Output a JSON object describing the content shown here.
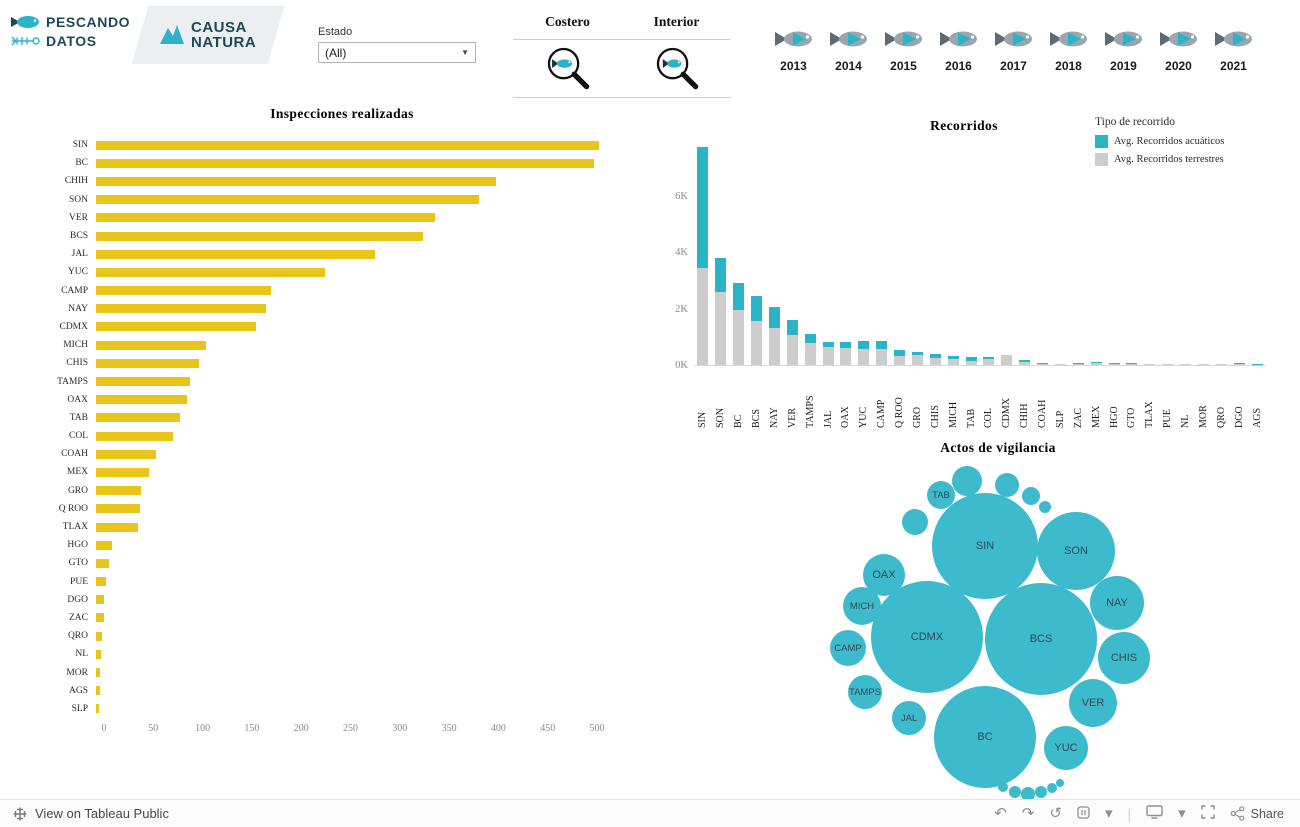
{
  "header": {
    "logo_pescando": {
      "line1": "PESCANDO",
      "line2": "DATOS"
    },
    "logo_causa": {
      "line1": "CAUSA",
      "line2": "NATURA"
    },
    "estado_filter": {
      "label": "Estado",
      "value": "(All)"
    },
    "region_filter": {
      "costero": "Costero",
      "interior": "Interior"
    },
    "years": [
      "2013",
      "2014",
      "2015",
      "2016",
      "2017",
      "2018",
      "2019",
      "2020",
      "2021"
    ]
  },
  "colors": {
    "teal": "#2bb3c7",
    "navy": "#1d4956",
    "yellow": "#e9c41a",
    "gray_bar": "#cdcdcd",
    "bubble": "#3dbacc"
  },
  "chart_data": [
    {
      "name": "inspecciones",
      "type": "bar",
      "orientation": "horizontal",
      "title": "Inspecciones realizadas",
      "color": "#e9c41a",
      "categories": [
        "SIN",
        "BC",
        "CHIH",
        "SON",
        "VER",
        "BCS",
        "JAL",
        "YUC",
        "CAMP",
        "NAY",
        "CDMX",
        "MICH",
        "CHIS",
        "TAMPS",
        "OAX",
        "TAB",
        "COL",
        "COAH",
        "MEX",
        "GRO",
        "Q ROO",
        "TLAX",
        "HGO",
        "GTO",
        "PUE",
        "DGO",
        "ZAC",
        "QRO",
        "NL",
        "MOR",
        "AGS",
        "SLP"
      ],
      "values": [
        510,
        505,
        406,
        388,
        344,
        332,
        283,
        232,
        177,
        172,
        162,
        112,
        104,
        95,
        92,
        85,
        78,
        61,
        54,
        46,
        45,
        43,
        16,
        13,
        10,
        8,
        8,
        6,
        5,
        4,
        4,
        3
      ],
      "xticks": [
        0,
        50,
        100,
        150,
        200,
        250,
        300,
        350,
        400,
        450,
        500
      ],
      "xlim": [
        0,
        525
      ],
      "grid": false
    },
    {
      "name": "recorridos",
      "type": "bar",
      "stacked": true,
      "title": "Recorridos",
      "legend_title": "Tipo de recorrido",
      "legend_position": "top-right",
      "categories": [
        "SIN",
        "SON",
        "BC",
        "BCS",
        "NAY",
        "VER",
        "TAMPS",
        "JAL",
        "OAX",
        "YUC",
        "CAMP",
        "Q ROO",
        "GRO",
        "CHIS",
        "MICH",
        "TAB",
        "COL",
        "CDMX",
        "CHIH",
        "COAH",
        "SLP",
        "ZAC",
        "MEX",
        "HGO",
        "GTO",
        "TLAX",
        "PUE",
        "NL",
        "MOR",
        "QRO",
        "DGO",
        "AGS"
      ],
      "series": [
        {
          "name": "Avg. Recorridos acuáticos",
          "color": "#2bb3c7",
          "values": [
            4250,
            1200,
            950,
            900,
            750,
            550,
            320,
            180,
            180,
            290,
            290,
            190,
            100,
            140,
            100,
            140,
            100,
            10,
            60,
            20,
            20,
            30,
            30,
            30,
            20,
            10,
            20,
            10,
            20,
            20,
            30,
            10
          ]
        },
        {
          "name": "Avg. Recorridos terrestres",
          "color": "#cdcdcd",
          "values": [
            3450,
            2600,
            1950,
            1550,
            1300,
            1050,
            780,
            650,
            620,
            560,
            560,
            330,
            360,
            260,
            220,
            160,
            200,
            340,
            110,
            40,
            30,
            40,
            70,
            50,
            40,
            20,
            30,
            20,
            30,
            20,
            30,
            10
          ]
        }
      ],
      "yticks": [
        {
          "label": "0K",
          "value": 0
        },
        {
          "label": "2K",
          "value": 2000
        },
        {
          "label": "4K",
          "value": 4000
        },
        {
          "label": "6K",
          "value": 6000
        }
      ],
      "ylim": [
        0,
        8000
      ],
      "grid": false
    },
    {
      "name": "actos_de_vigilancia",
      "type": "bubble",
      "title": "Actos de vigilancia",
      "color": "#3dbacc",
      "bubbles": [
        {
          "label": "TAB",
          "x": 153,
          "y": 35,
          "r": 14
        },
        {
          "label": "",
          "x": 127,
          "y": 62,
          "r": 13
        },
        {
          "label": "",
          "x": 179,
          "y": 21,
          "r": 15
        },
        {
          "label": "",
          "x": 219,
          "y": 25,
          "r": 12
        },
        {
          "label": "",
          "x": 243,
          "y": 36,
          "r": 9
        },
        {
          "label": "",
          "x": 257,
          "y": 47,
          "r": 6
        },
        {
          "label": "SIN",
          "x": 197,
          "y": 86,
          "r": 53
        },
        {
          "label": "SON",
          "x": 288,
          "y": 91,
          "r": 39
        },
        {
          "label": "OAX",
          "x": 96,
          "y": 115,
          "r": 21
        },
        {
          "label": "MICH",
          "x": 74,
          "y": 146,
          "r": 19
        },
        {
          "label": "NAY",
          "x": 329,
          "y": 143,
          "r": 27
        },
        {
          "label": "CDMX",
          "x": 139,
          "y": 177,
          "r": 56
        },
        {
          "label": "BCS",
          "x": 253,
          "y": 179,
          "r": 56
        },
        {
          "label": "CAMP",
          "x": 60,
          "y": 188,
          "r": 18
        },
        {
          "label": "CHIS",
          "x": 336,
          "y": 198,
          "r": 26
        },
        {
          "label": "TAMPS",
          "x": 77,
          "y": 232,
          "r": 17
        },
        {
          "label": "VER",
          "x": 305,
          "y": 243,
          "r": 24
        },
        {
          "label": "JAL",
          "x": 121,
          "y": 258,
          "r": 17
        },
        {
          "label": "BC",
          "x": 197,
          "y": 277,
          "r": 51
        },
        {
          "label": "YUC",
          "x": 278,
          "y": 288,
          "r": 22
        },
        {
          "label": "",
          "x": 215,
          "y": 327,
          "r": 5
        },
        {
          "label": "",
          "x": 227,
          "y": 332,
          "r": 6
        },
        {
          "label": "",
          "x": 240,
          "y": 334,
          "r": 7
        },
        {
          "label": "",
          "x": 253,
          "y": 332,
          "r": 6
        },
        {
          "label": "",
          "x": 264,
          "y": 328,
          "r": 5
        },
        {
          "label": "",
          "x": 272,
          "y": 323,
          "r": 4
        }
      ]
    }
  ],
  "footer": {
    "view_text": "View on Tableau Public",
    "share_label": "Share",
    "glyphs": {
      "undo": "↶",
      "redo": "↷",
      "replay": "↺",
      "caret": "▾",
      "divider": "|"
    }
  }
}
